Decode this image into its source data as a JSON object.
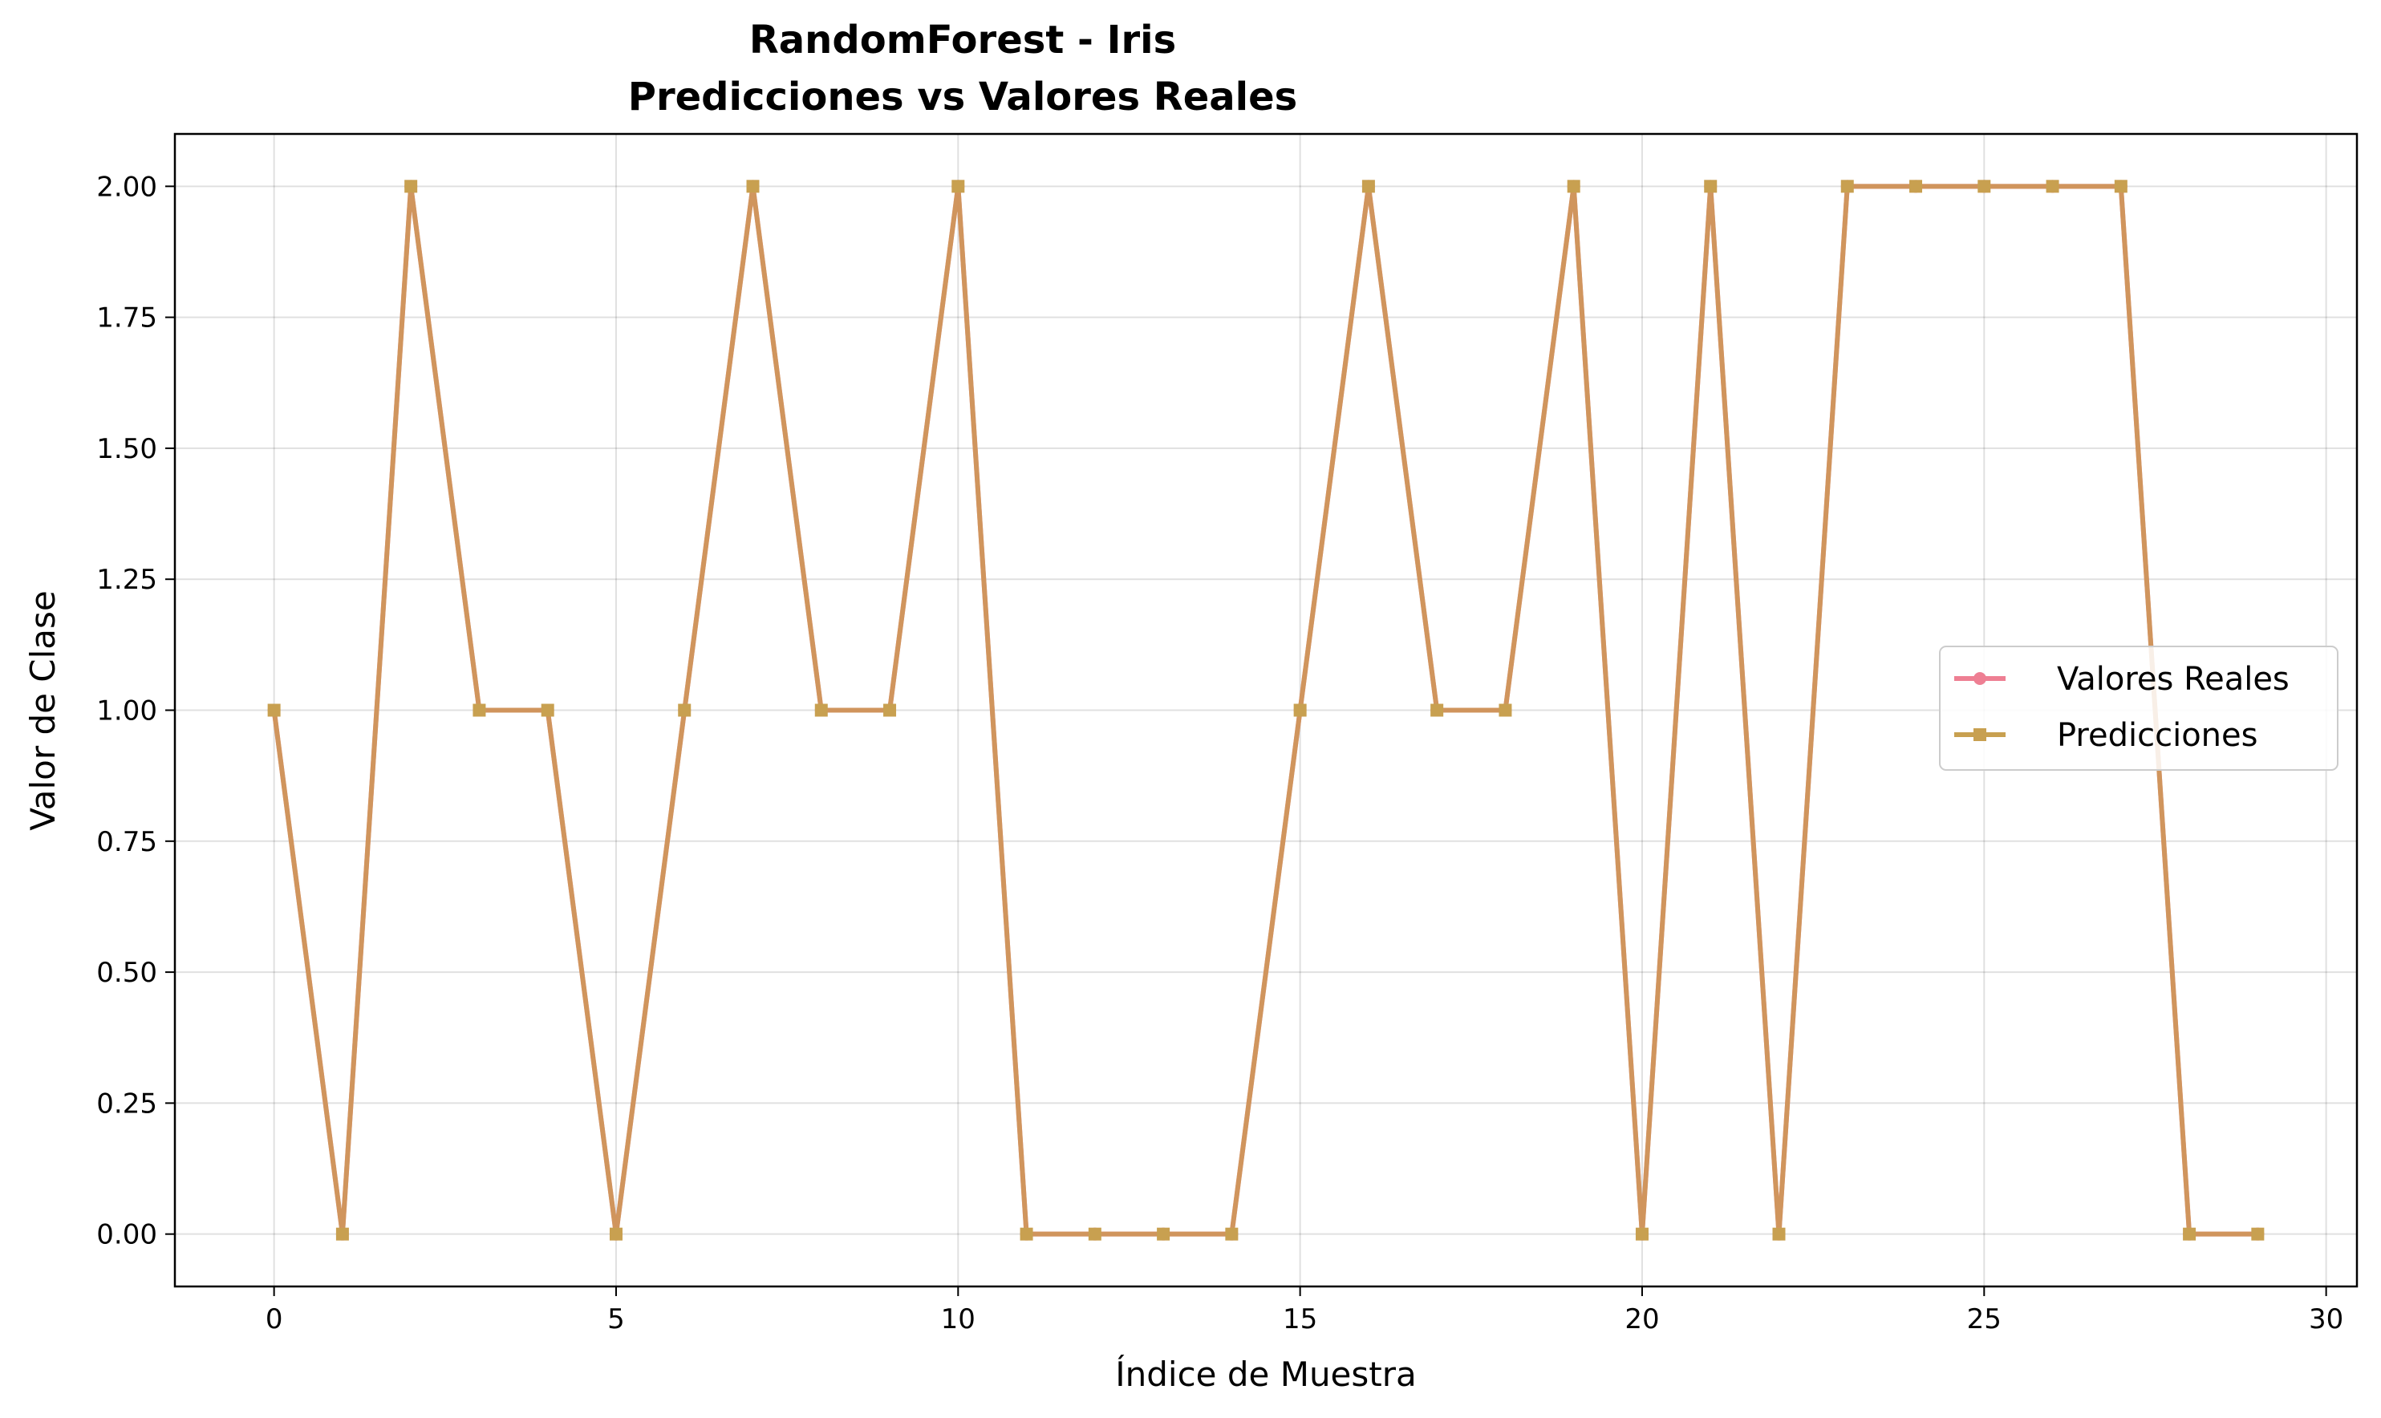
{
  "chart_data": {
    "type": "line",
    "title_line1": "RandomForest - Iris",
    "title_line2": "Predicciones vs Valores Reales",
    "xlabel": "Índice de Muestra",
    "ylabel": "Valor de Clase",
    "xlim": [
      -1.45,
      30.45
    ],
    "ylim": [
      -0.1,
      2.1
    ],
    "x_ticks": [
      0,
      5,
      10,
      15,
      20,
      25,
      30
    ],
    "x_tick_labels": [
      "0",
      "5",
      "10",
      "15",
      "20",
      "25",
      "30"
    ],
    "y_ticks": [
      0,
      0.25,
      0.5,
      0.75,
      1.0,
      1.25,
      1.5,
      1.75,
      2.0
    ],
    "y_tick_labels": [
      "0.00",
      "0.25",
      "0.50",
      "0.75",
      "1.00",
      "1.25",
      "1.50",
      "1.75",
      "2.00"
    ],
    "grid": true,
    "legend_position": "center-right",
    "x": [
      0,
      1,
      2,
      3,
      4,
      5,
      6,
      7,
      8,
      9,
      10,
      11,
      12,
      13,
      14,
      15,
      16,
      17,
      18,
      19,
      20,
      21,
      22,
      23,
      24,
      25,
      26,
      27,
      28,
      29
    ],
    "series": [
      {
        "name": "Valores Reales",
        "marker": "circle",
        "color": "#ee7f93",
        "values": [
          1,
          0,
          2,
          1,
          1,
          0,
          1,
          2,
          1,
          1,
          2,
          0,
          0,
          0,
          0,
          1,
          2,
          1,
          1,
          2,
          0,
          2,
          0,
          2,
          2,
          2,
          2,
          2,
          0,
          0
        ]
      },
      {
        "name": "Predicciones",
        "marker": "square",
        "color": "#c8a050",
        "values": [
          1,
          0,
          2,
          1,
          1,
          0,
          1,
          2,
          1,
          1,
          2,
          0,
          0,
          0,
          0,
          1,
          2,
          1,
          1,
          2,
          0,
          2,
          0,
          2,
          2,
          2,
          2,
          2,
          0,
          0
        ]
      }
    ],
    "overlap_color": "#cc9655"
  }
}
